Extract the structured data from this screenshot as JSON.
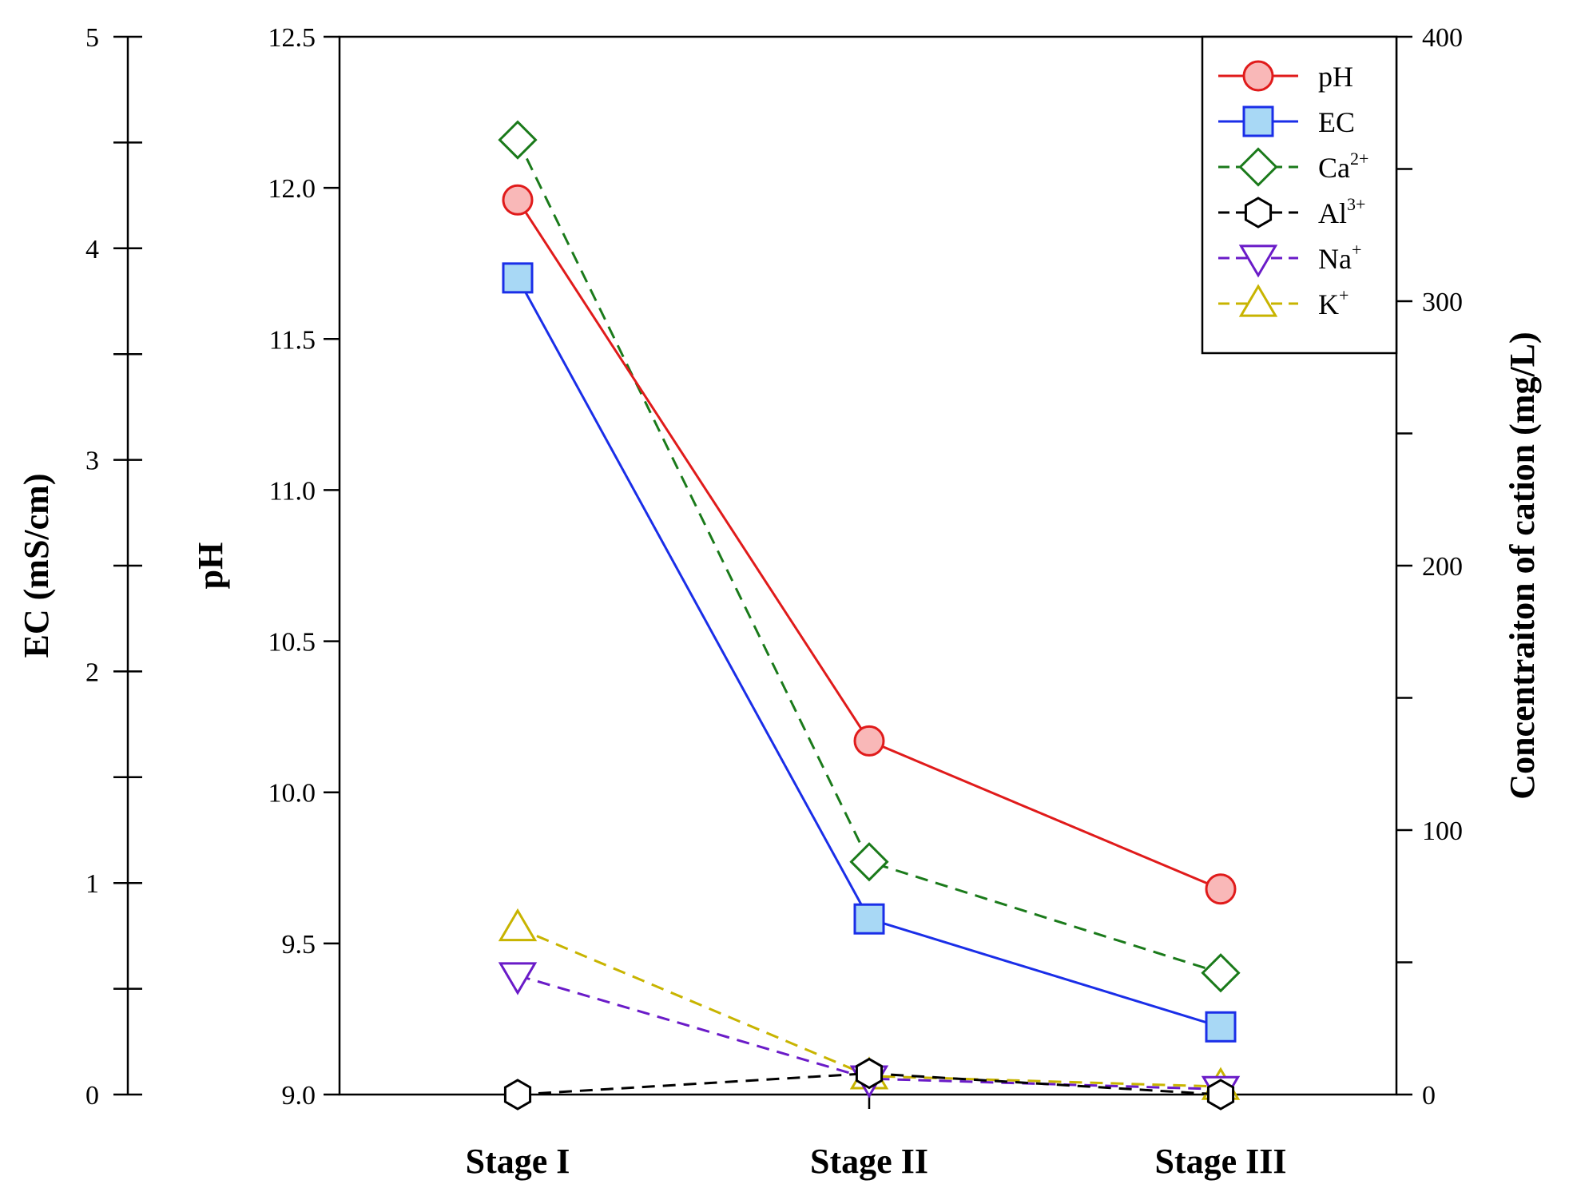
{
  "chart_data": {
    "type": "line",
    "categories": [
      "Stage I",
      "Stage II",
      "Stage III"
    ],
    "axes": {
      "ph": {
        "label": "pH",
        "min": 9.0,
        "max": 12.5,
        "ticks": [
          "9.0",
          "9.5",
          "10.0",
          "10.5",
          "11.0",
          "11.5",
          "12.0",
          "12.5"
        ],
        "tick_values": [
          9.0,
          9.5,
          10.0,
          10.5,
          11.0,
          11.5,
          12.0,
          12.5
        ]
      },
      "ec": {
        "label": "EC (mS/cm)",
        "min": 0,
        "max": 5,
        "ticks": [
          "0",
          "1",
          "2",
          "3",
          "4",
          "5"
        ],
        "tick_values": [
          0,
          1,
          2,
          3,
          4,
          5
        ]
      },
      "cation": {
        "label": "Concentraiton of cation (mg/L)",
        "min": 0,
        "max": 400,
        "ticks": [
          "0",
          "100",
          "200",
          "300",
          "400"
        ],
        "tick_values": [
          0,
          100,
          200,
          300,
          400
        ]
      }
    },
    "series": [
      {
        "key": "ph",
        "name": "pH",
        "sup": "",
        "axis": "ph",
        "values": [
          11.96,
          10.17,
          9.68
        ],
        "color": "#e01b1b",
        "fill": "#f9b8b8",
        "marker": "circle",
        "dash": "none"
      },
      {
        "key": "ec",
        "name": "EC",
        "sup": "",
        "axis": "ec",
        "values": [
          3.86,
          0.83,
          0.32
        ],
        "color": "#1a2ee8",
        "fill": "#a8d8f5",
        "marker": "square",
        "dash": "none"
      },
      {
        "key": "ca",
        "name": "Ca",
        "sup": "2+",
        "axis": "cation",
        "values": [
          361,
          88,
          46
        ],
        "color": "#1a7a1a",
        "fill": "none",
        "marker": "diamond",
        "dash": "dashed"
      },
      {
        "key": "al",
        "name": "Al",
        "sup": "3+",
        "axis": "cation",
        "values": [
          0,
          8,
          0
        ],
        "color": "#000000",
        "fill": "none",
        "marker": "hexagon",
        "dash": "dashed"
      },
      {
        "key": "na",
        "name": "Na",
        "sup": "+",
        "axis": "cation",
        "values": [
          45,
          6,
          2
        ],
        "color": "#6a1bc8",
        "fill": "none",
        "marker": "triangle-down",
        "dash": "dashed"
      },
      {
        "key": "k",
        "name": "K",
        "sup": "+",
        "axis": "cation",
        "values": [
          63,
          7,
          3
        ],
        "color": "#c8b400",
        "fill": "none",
        "marker": "triangle-up",
        "dash": "dashed"
      }
    ],
    "legend_position": "top-right"
  }
}
